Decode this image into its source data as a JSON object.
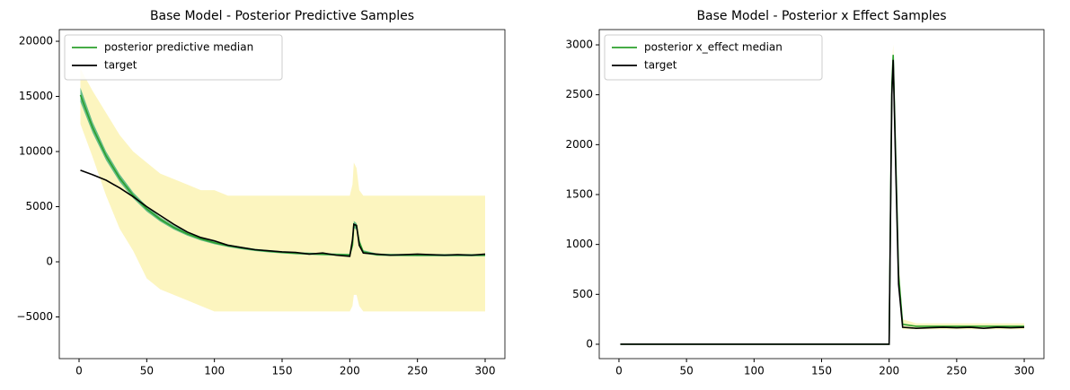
{
  "chart_data": [
    {
      "type": "line",
      "title": "Base Model - Posterior Predictive Samples",
      "x": [
        1,
        10,
        20,
        30,
        40,
        50,
        60,
        70,
        80,
        90,
        100,
        110,
        120,
        130,
        140,
        150,
        160,
        170,
        180,
        190,
        200,
        202,
        203,
        205,
        207,
        210,
        220,
        230,
        240,
        250,
        260,
        270,
        280,
        290,
        300
      ],
      "series": [
        {
          "name": "posterior predictive median",
          "color": "#2ca02c",
          "values": [
            15130,
            12180,
            9600,
            7590,
            6020,
            4800,
            3850,
            3110,
            2530,
            2080,
            1730,
            1460,
            1250,
            1080,
            960,
            860,
            780,
            730,
            690,
            650,
            620,
            1500,
            3400,
            3200,
            1800,
            900,
            650,
            620,
            610,
            600,
            600,
            600,
            600,
            600,
            600
          ]
        },
        {
          "name": "target",
          "color": "#000000",
          "values": [
            8300,
            7900,
            7400,
            6700,
            5900,
            5000,
            4200,
            3400,
            2700,
            2200,
            1900,
            1500,
            1300,
            1100,
            1000,
            900,
            850,
            700,
            800,
            600,
            500,
            2000,
            3400,
            3300,
            1500,
            800,
            700,
            600,
            650,
            700,
            650,
            600,
            650,
            600,
            700
          ]
        }
      ],
      "bands": [
        {
          "color": "#fbf3b4",
          "lower": [
            12500,
            9500,
            6000,
            3000,
            1000,
            -1500,
            -2500,
            -3000,
            -3500,
            -4000,
            -4500,
            -4500,
            -4500,
            -4500,
            -4500,
            -4500,
            -4500,
            -4500,
            -4500,
            -4500,
            -4500,
            -4000,
            -3000,
            -3000,
            -4000,
            -4500,
            -4500,
            -4500,
            -4500,
            -4500,
            -4500,
            -4500,
            -4500,
            -4500,
            -4500
          ],
          "upper": [
            17500,
            15500,
            13500,
            11500,
            10000,
            9000,
            8000,
            7500,
            7000,
            6500,
            6500,
            6000,
            6000,
            6000,
            6000,
            6000,
            6000,
            6000,
            6000,
            6000,
            6000,
            7000,
            9000,
            8500,
            6500,
            6000,
            6000,
            6000,
            6000,
            6000,
            6000,
            6000,
            6000,
            6000,
            6000
          ]
        },
        {
          "color": "#3fae7c",
          "lower": [
            14500,
            11700,
            9200,
            7250,
            5750,
            4550,
            3650,
            2930,
            2370,
            1930,
            1600,
            1340,
            1140,
            980,
            860,
            760,
            680,
            630,
            590,
            550,
            520,
            1300,
            3100,
            2900,
            1550,
            750,
            550,
            520,
            510,
            500,
            500,
            500,
            500,
            500,
            500
          ],
          "upper": [
            15800,
            12700,
            10000,
            7950,
            6300,
            5050,
            4050,
            3290,
            2690,
            2230,
            1860,
            1580,
            1360,
            1180,
            1060,
            960,
            880,
            830,
            790,
            750,
            720,
            1700,
            3700,
            3500,
            2050,
            1050,
            750,
            720,
            710,
            700,
            700,
            700,
            700,
            700,
            700
          ]
        }
      ],
      "xlim": [
        -14.6,
        314.6
      ],
      "xticks": [
        0,
        50,
        100,
        150,
        200,
        250,
        300
      ],
      "ylim": [
        -8780,
        21060
      ],
      "yticks": [
        {
          "value": -5000,
          "label": "−5000"
        },
        0,
        5000,
        10000,
        15000,
        20000
      ],
      "legend": "upper left"
    },
    {
      "type": "line",
      "title": "Base Model - Posterior x Effect Samples",
      "x": [
        1,
        10,
        20,
        30,
        40,
        50,
        60,
        70,
        80,
        90,
        100,
        110,
        120,
        130,
        140,
        150,
        160,
        170,
        180,
        190,
        200,
        202,
        203,
        205,
        207,
        210,
        220,
        230,
        240,
        250,
        260,
        270,
        280,
        290,
        300
      ],
      "series": [
        {
          "name": "posterior x_effect median",
          "color": "#2ca02c",
          "values": [
            0,
            0,
            0,
            0,
            0,
            0,
            0,
            0,
            0,
            0,
            0,
            0,
            0,
            0,
            0,
            0,
            0,
            0,
            0,
            0,
            0,
            2600,
            2900,
            1800,
            700,
            200,
            180,
            180,
            180,
            180,
            180,
            180,
            180,
            180,
            180
          ]
        },
        {
          "name": "target",
          "color": "#000000",
          "values": [
            0,
            0,
            0,
            0,
            0,
            0,
            0,
            0,
            0,
            0,
            0,
            0,
            0,
            0,
            0,
            0,
            0,
            0,
            0,
            0,
            0,
            2500,
            2850,
            1700,
            600,
            170,
            160,
            165,
            170,
            165,
            170,
            160,
            170,
            165,
            170
          ]
        }
      ],
      "bands": [
        {
          "color": "#fbf3b4",
          "lower": [
            0,
            0,
            0,
            0,
            0,
            0,
            0,
            0,
            0,
            0,
            0,
            0,
            0,
            0,
            0,
            0,
            0,
            0,
            0,
            0,
            0,
            2400,
            2750,
            1600,
            550,
            150,
            150,
            150,
            150,
            150,
            150,
            150,
            150,
            150,
            150
          ],
          "upper": [
            0,
            0,
            0,
            0,
            0,
            0,
            0,
            0,
            0,
            0,
            0,
            0,
            0,
            0,
            0,
            0,
            0,
            0,
            0,
            0,
            0,
            2750,
            3000,
            1950,
            850,
            250,
            210,
            210,
            210,
            210,
            210,
            210,
            210,
            210,
            210
          ]
        }
      ],
      "xlim": [
        -14.6,
        314.6
      ],
      "xticks": [
        0,
        50,
        100,
        150,
        200,
        250,
        300
      ],
      "ylim": [
        -144,
        3153
      ],
      "yticks": [
        0,
        500,
        1000,
        1500,
        2000,
        2500,
        3000
      ],
      "legend": "upper left"
    }
  ]
}
